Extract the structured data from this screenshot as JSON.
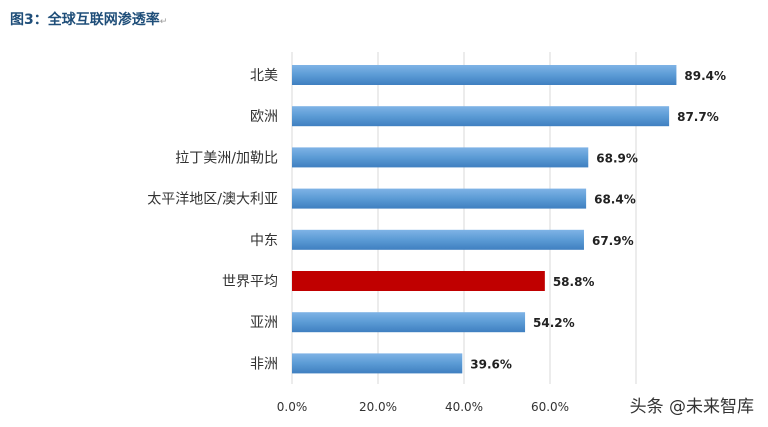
{
  "header": {
    "title": "图3：全球互联网渗透率",
    "title_mark": "↵"
  },
  "watermark": {
    "text": "头条 @未来智库"
  },
  "colors": {
    "bar_default": "#5b9bd5",
    "bar_highlight": "#c00000",
    "grid": "#d9d9d9"
  },
  "chart_data": {
    "type": "bar",
    "orientation": "horizontal",
    "categories": [
      "北美",
      "欧洲",
      "拉丁美洲/加勒比",
      "太平洋地区/澳大利亚",
      "中东",
      "世界平均",
      "亚洲",
      "非洲"
    ],
    "values": [
      89.4,
      87.7,
      68.9,
      68.4,
      67.9,
      58.8,
      54.2,
      39.6
    ],
    "value_labels": [
      "89.4%",
      "87.7%",
      "68.9%",
      "68.4%",
      "67.9%",
      "58.8%",
      "54.2%",
      "39.6%"
    ],
    "highlight_category": "世界平均",
    "xlim": [
      0,
      100
    ],
    "x_ticks": [
      0,
      20,
      40,
      60
    ],
    "x_tick_labels": [
      "0.0%",
      "20.0%",
      "40.0%",
      "60.0%"
    ],
    "grid": true,
    "legend": "none"
  }
}
